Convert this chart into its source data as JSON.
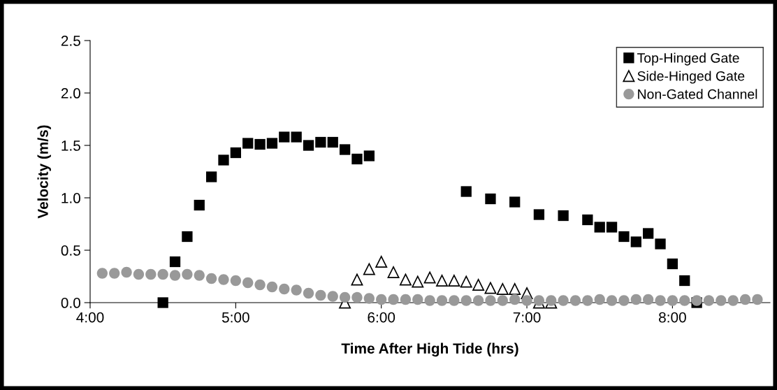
{
  "chart_data": {
    "type": "scatter",
    "xlabel": "Time After High Tide (hrs)",
    "ylabel": "Velocity (m/s)",
    "xlim": [
      4,
      8.67
    ],
    "xticks": [
      {
        "value": 4,
        "label": "4:00"
      },
      {
        "value": 5,
        "label": "5:00"
      },
      {
        "value": 6,
        "label": "6:00"
      },
      {
        "value": 7,
        "label": "7:00"
      },
      {
        "value": 8,
        "label": "8:00"
      }
    ],
    "ylim": [
      0,
      2.5
    ],
    "yticks": [
      {
        "value": 0,
        "label": "0.0"
      },
      {
        "value": 0.5,
        "label": "0.5"
      },
      {
        "value": 1,
        "label": "1.0"
      },
      {
        "value": 1.5,
        "label": "1.5"
      },
      {
        "value": 2,
        "label": "2.0"
      },
      {
        "value": 2.5,
        "label": "2.5"
      }
    ],
    "grid": false,
    "legend": "top right",
    "series": [
      {
        "name": "Top-Hinged Gate",
        "color": "#000000",
        "marker": "square",
        "x": [
          4.5,
          4.5833,
          4.6667,
          4.75,
          4.8333,
          4.9167,
          5.0,
          5.0833,
          5.1667,
          5.25,
          5.3333,
          5.4167,
          5.5,
          5.5833,
          5.6667,
          5.75,
          5.8333,
          5.9167,
          6.5833,
          6.75,
          6.9167,
          7.0833,
          7.25,
          7.4167,
          7.5,
          7.5833,
          7.6667,
          7.75,
          7.8333,
          7.9167,
          8.0,
          8.0833,
          8.1667
        ],
        "values": [
          0.0,
          0.39,
          0.63,
          0.93,
          1.2,
          1.36,
          1.43,
          1.52,
          1.51,
          1.52,
          1.58,
          1.58,
          1.5,
          1.53,
          1.53,
          1.46,
          1.37,
          1.4,
          1.06,
          0.99,
          0.96,
          0.84,
          0.83,
          0.79,
          0.72,
          0.72,
          0.63,
          0.58,
          0.66,
          0.56,
          0.37,
          0.21,
          0.0
        ]
      },
      {
        "name": "Side-Hinged Gate",
        "color": "#000000",
        "marker": "triangle",
        "x": [
          5.75,
          5.8333,
          5.9167,
          6.0,
          6.0833,
          6.1667,
          6.25,
          6.3333,
          6.4167,
          6.5,
          6.5833,
          6.6667,
          6.75,
          6.8333,
          6.9167,
          7.0,
          7.0833,
          7.1667
        ],
        "values": [
          0.0,
          0.22,
          0.32,
          0.39,
          0.29,
          0.22,
          0.2,
          0.24,
          0.21,
          0.21,
          0.2,
          0.17,
          0.14,
          0.13,
          0.13,
          0.09,
          0.0,
          0.0
        ]
      },
      {
        "name": "Non-Gated Channel",
        "color": "#999999",
        "marker": "circle",
        "x": [
          4.0833,
          4.1667,
          4.25,
          4.3333,
          4.4167,
          4.5,
          4.5833,
          4.6667,
          4.75,
          4.8333,
          4.9167,
          5.0,
          5.0833,
          5.1667,
          5.25,
          5.3333,
          5.4167,
          5.5,
          5.5833,
          5.6667,
          5.75,
          5.8333,
          5.9167,
          6.0,
          6.0833,
          6.1667,
          6.25,
          6.3333,
          6.4167,
          6.5,
          6.5833,
          6.6667,
          6.75,
          6.8333,
          6.9167,
          7.0,
          7.0833,
          7.1667,
          7.25,
          7.3333,
          7.4167,
          7.5,
          7.5833,
          7.6667,
          7.75,
          7.8333,
          7.9167,
          8.0,
          8.0833,
          8.1667,
          8.25,
          8.3333,
          8.4167,
          8.5,
          8.5833
        ],
        "values": [
          0.28,
          0.28,
          0.29,
          0.27,
          0.27,
          0.27,
          0.26,
          0.27,
          0.26,
          0.23,
          0.22,
          0.21,
          0.19,
          0.17,
          0.15,
          0.13,
          0.12,
          0.09,
          0.07,
          0.06,
          0.05,
          0.05,
          0.04,
          0.03,
          0.03,
          0.03,
          0.03,
          0.02,
          0.02,
          0.02,
          0.02,
          0.02,
          0.02,
          0.02,
          0.03,
          0.02,
          0.02,
          0.02,
          0.02,
          0.02,
          0.02,
          0.03,
          0.02,
          0.02,
          0.03,
          0.03,
          0.02,
          0.02,
          0.02,
          0.02,
          0.02,
          0.02,
          0.02,
          0.03,
          0.03
        ]
      }
    ]
  }
}
